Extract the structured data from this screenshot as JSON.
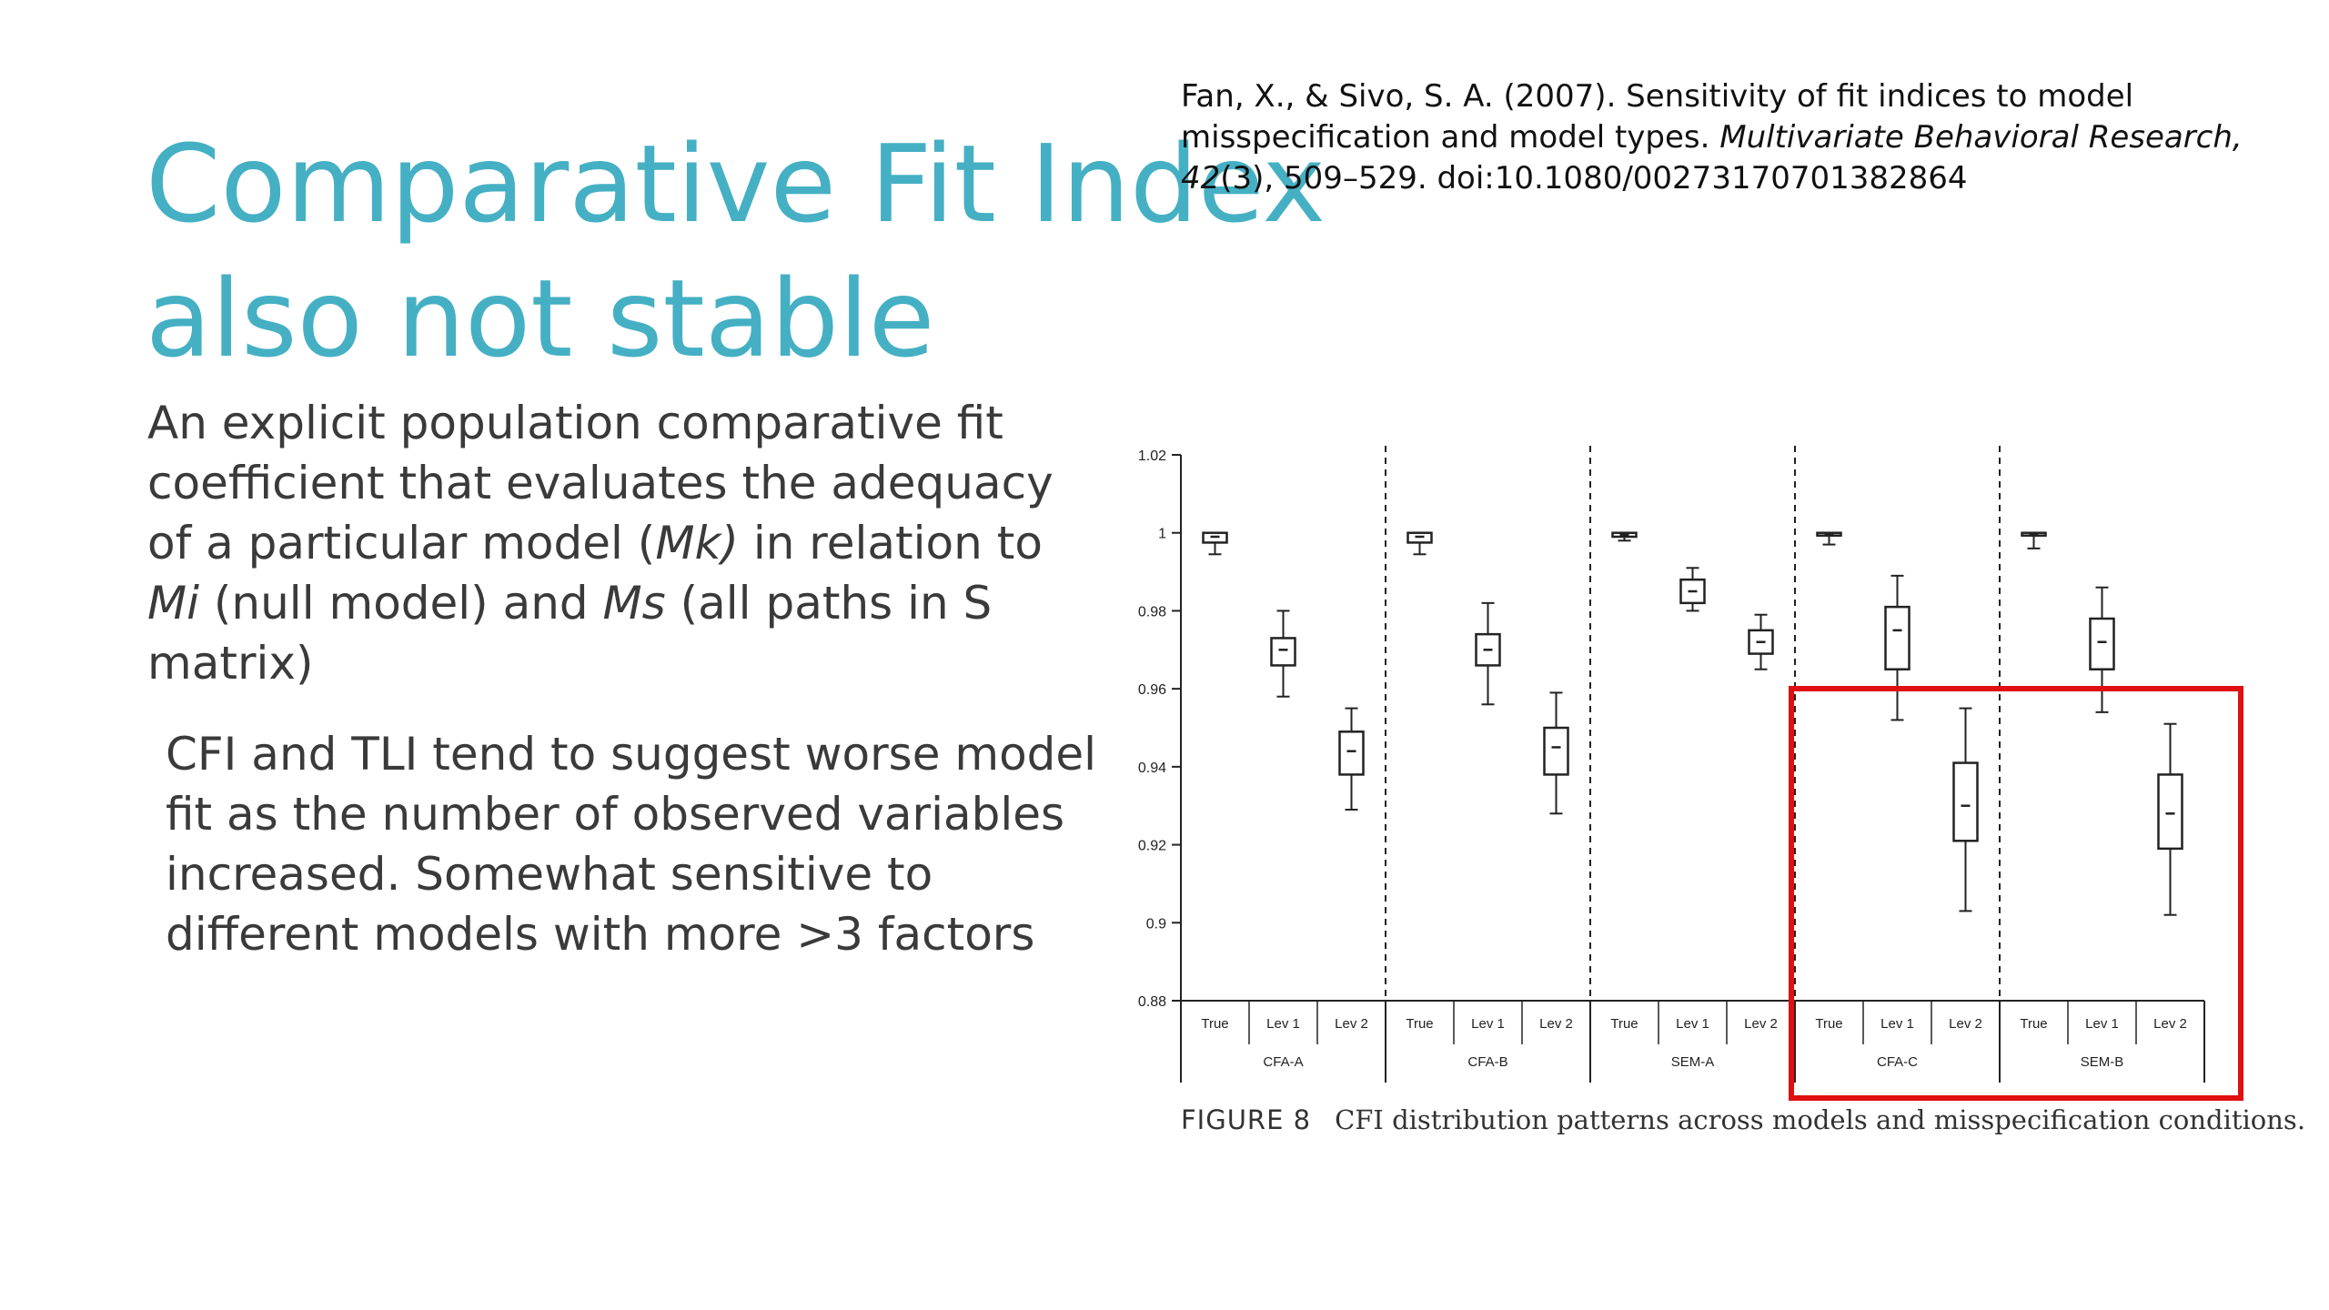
{
  "slide": {
    "title_line1": "Comparative Fit Index",
    "title_line2": "also not stable",
    "citation": {
      "authors": "Fan, X., & Sivo, S. A. (2007). Sensitivity of fit indices to model misspecification and model types. ",
      "journal": "Multivariate Behavioral Research, 42",
      "rest": "(3), 509–529. doi:10.1080/00273170701382864"
    },
    "body1": {
      "l1": "An explicit population comparative fit",
      "l2": "coefficient that evaluates the adequacy",
      "l3_a": "of a particular model (",
      "l3_b": "Mk)",
      "l3_c": " in relation to",
      "l4_a": "Mi",
      "l4_b": " (null model) and ",
      "l4_c": "Ms",
      "l4_d": " (all paths in S",
      "l5": "matrix)"
    },
    "body2": {
      "l1": "CFI and TLI tend to suggest worse model",
      "l2": "fit as the number of observed variables",
      "l3": "increased. Somewhat sensitive to",
      "l4": "different models with more >3 factors"
    },
    "caption": {
      "figure": "FIGURE 8",
      "text": "CFI distribution patterns across models and misspecification conditions."
    }
  },
  "colors": {
    "title": "#45b0c4",
    "highlight_box": "#e01010",
    "plot_ink": "#222222"
  },
  "chart_data": {
    "type": "boxplot",
    "ylim": [
      0.88,
      1.02
    ],
    "yticks": [
      "0.88",
      "0.9",
      "0.92",
      "0.94",
      "0.96",
      "0.98",
      "1",
      "1.02"
    ],
    "groups": [
      {
        "name": "CFA-A",
        "conditions": [
          "True",
          "Lev 1",
          "Lev 2"
        ]
      },
      {
        "name": "CFA-B",
        "conditions": [
          "True",
          "Lev 1",
          "Lev 2"
        ]
      },
      {
        "name": "SEM-A",
        "conditions": [
          "True",
          "Lev 1",
          "Lev 2"
        ]
      },
      {
        "name": "CFA-C",
        "conditions": [
          "True",
          "Lev 1",
          "Lev 2"
        ]
      },
      {
        "name": "SEM-B",
        "conditions": [
          "True",
          "Lev 1",
          "Lev 2"
        ]
      }
    ],
    "boxes": [
      {
        "group": "CFA-A",
        "condition": "True",
        "whisker_low": 0.9945,
        "q1": 0.9975,
        "median": 0.999,
        "q3": 1.0,
        "whisker_high": 1.0
      },
      {
        "group": "CFA-A",
        "condition": "Lev 1",
        "whisker_low": 0.958,
        "q1": 0.966,
        "median": 0.97,
        "q3": 0.973,
        "whisker_high": 0.98
      },
      {
        "group": "CFA-A",
        "condition": "Lev 2",
        "whisker_low": 0.929,
        "q1": 0.938,
        "median": 0.944,
        "q3": 0.949,
        "whisker_high": 0.955
      },
      {
        "group": "CFA-B",
        "condition": "True",
        "whisker_low": 0.9945,
        "q1": 0.9975,
        "median": 0.999,
        "q3": 1.0,
        "whisker_high": 1.0
      },
      {
        "group": "CFA-B",
        "condition": "Lev 1",
        "whisker_low": 0.956,
        "q1": 0.966,
        "median": 0.97,
        "q3": 0.974,
        "whisker_high": 0.982
      },
      {
        "group": "CFA-B",
        "condition": "Lev 2",
        "whisker_low": 0.928,
        "q1": 0.938,
        "median": 0.945,
        "q3": 0.95,
        "whisker_high": 0.959
      },
      {
        "group": "SEM-A",
        "condition": "True",
        "whisker_low": 0.998,
        "q1": 0.999,
        "median": 0.9995,
        "q3": 1.0,
        "whisker_high": 1.0
      },
      {
        "group": "SEM-A",
        "condition": "Lev 1",
        "whisker_low": 0.98,
        "q1": 0.982,
        "median": 0.985,
        "q3": 0.988,
        "whisker_high": 0.991
      },
      {
        "group": "SEM-A",
        "condition": "Lev 2",
        "whisker_low": 0.965,
        "q1": 0.969,
        "median": 0.972,
        "q3": 0.975,
        "whisker_high": 0.979
      },
      {
        "group": "CFA-C",
        "condition": "True",
        "whisker_low": 0.997,
        "q1": 0.9995,
        "median": 0.9998,
        "q3": 1.0,
        "whisker_high": 1.0
      },
      {
        "group": "CFA-C",
        "condition": "Lev 1",
        "whisker_low": 0.952,
        "q1": 0.965,
        "median": 0.975,
        "q3": 0.981,
        "whisker_high": 0.989
      },
      {
        "group": "CFA-C",
        "condition": "Lev 2",
        "whisker_low": 0.903,
        "q1": 0.921,
        "median": 0.93,
        "q3": 0.941,
        "whisker_high": 0.955
      },
      {
        "group": "SEM-B",
        "condition": "True",
        "whisker_low": 0.996,
        "q1": 0.9995,
        "median": 0.9998,
        "q3": 1.0,
        "whisker_high": 1.0
      },
      {
        "group": "SEM-B",
        "condition": "Lev 1",
        "whisker_low": 0.954,
        "q1": 0.965,
        "median": 0.972,
        "q3": 0.978,
        "whisker_high": 0.986
      },
      {
        "group": "SEM-B",
        "condition": "Lev 2",
        "whisker_low": 0.902,
        "q1": 0.919,
        "median": 0.928,
        "q3": 0.938,
        "whisker_high": 0.951
      }
    ],
    "highlight": {
      "groups": [
        "CFA-C",
        "SEM-B"
      ]
    },
    "grid": false
  }
}
